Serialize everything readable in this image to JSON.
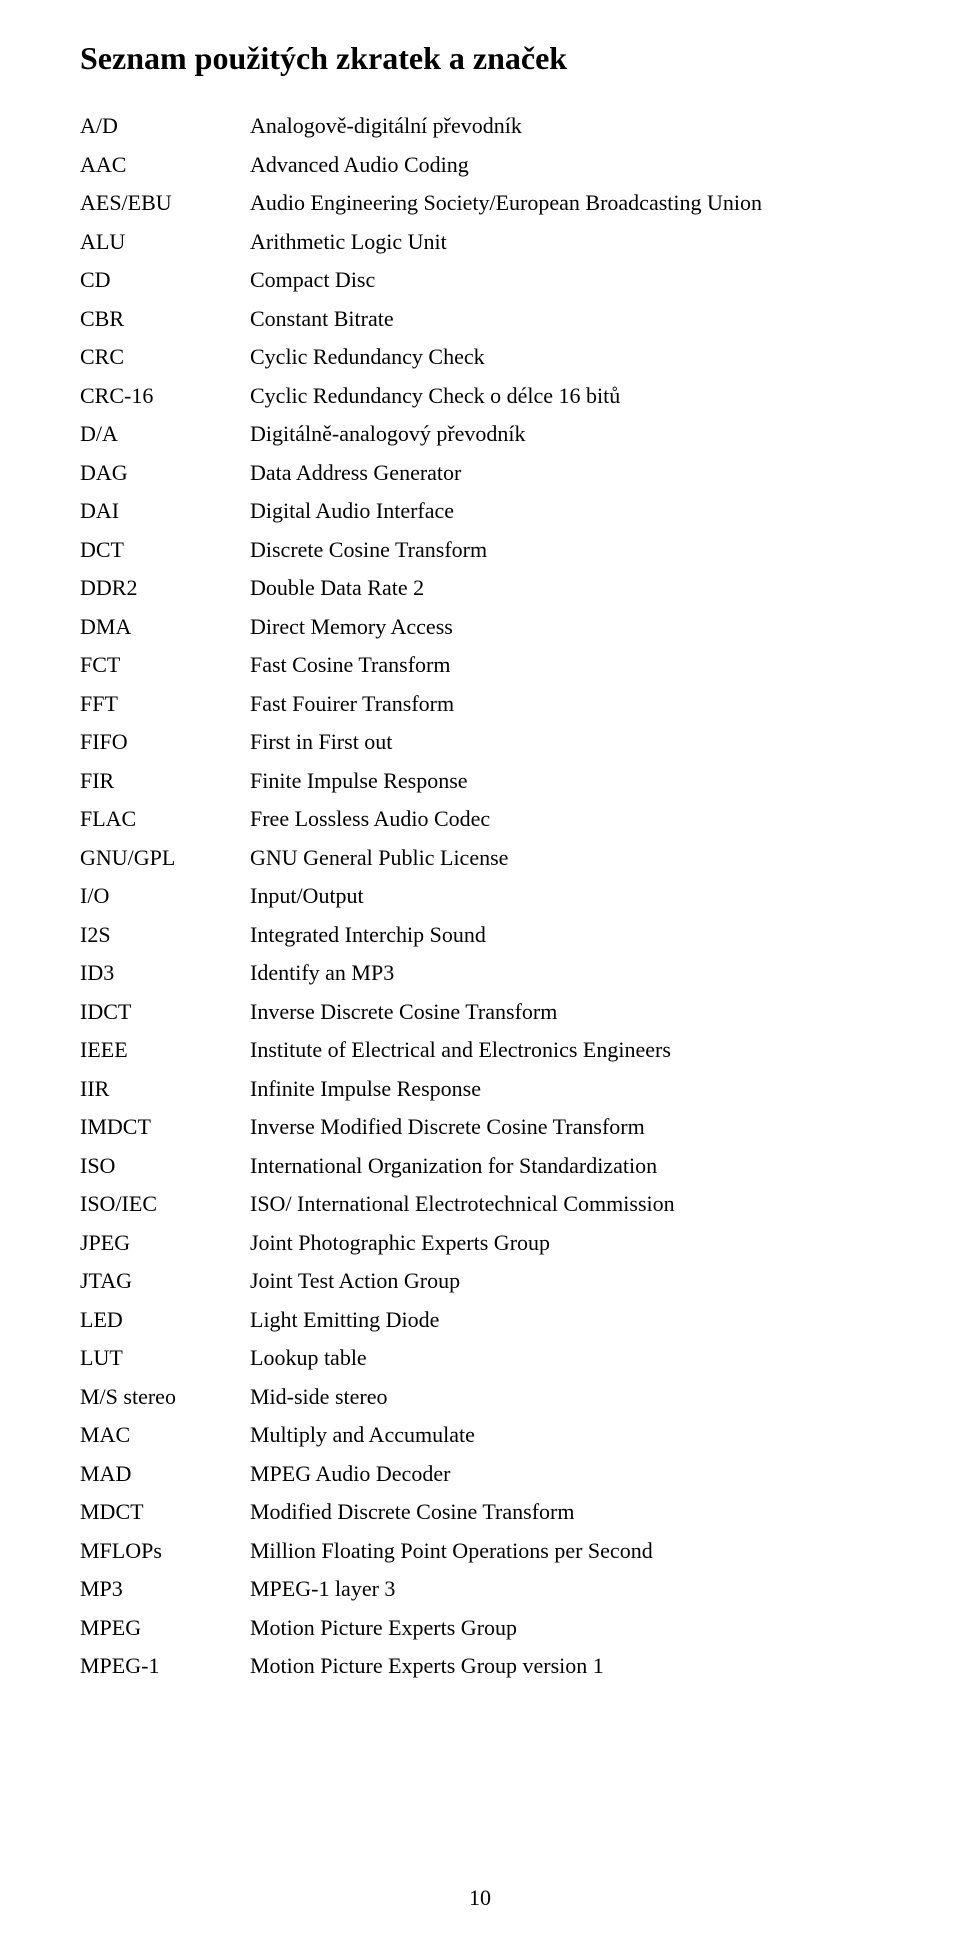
{
  "heading": "Seznam použitých zkratek a značek",
  "entries": [
    {
      "abbr": "A/D",
      "def": "Analogově-digitální převodník"
    },
    {
      "abbr": "AAC",
      "def": "Advanced Audio Coding"
    },
    {
      "abbr": "AES/EBU",
      "def": "Audio Engineering Society/European Broadcasting Union"
    },
    {
      "abbr": "ALU",
      "def": "Arithmetic Logic Unit"
    },
    {
      "abbr": "CD",
      "def": "Compact Disc"
    },
    {
      "abbr": "CBR",
      "def": "Constant Bitrate"
    },
    {
      "abbr": "CRC",
      "def": "Cyclic Redundancy Check"
    },
    {
      "abbr": "CRC-16",
      "def": "Cyclic Redundancy Check o délce 16 bitů"
    },
    {
      "abbr": "D/A",
      "def": "Digitálně-analogový převodník"
    },
    {
      "abbr": "DAG",
      "def": "Data Address Generator"
    },
    {
      "abbr": "DAI",
      "def": "Digital Audio Interface"
    },
    {
      "abbr": "DCT",
      "def": "Discrete Cosine Transform"
    },
    {
      "abbr": "DDR2",
      "def": "Double Data Rate 2"
    },
    {
      "abbr": "DMA",
      "def": "Direct Memory Access"
    },
    {
      "abbr": "FCT",
      "def": "Fast Cosine Transform"
    },
    {
      "abbr": "FFT",
      "def": "Fast Fouirer Transform"
    },
    {
      "abbr": "FIFO",
      "def": "First in First out"
    },
    {
      "abbr": "FIR",
      "def": "Finite Impulse Response"
    },
    {
      "abbr": "FLAC",
      "def": "Free Lossless Audio Codec"
    },
    {
      "abbr": "GNU/GPL",
      "def": "GNU General Public License"
    },
    {
      "abbr": "I/O",
      "def": "Input/Output"
    },
    {
      "abbr": "I2S",
      "def": "Integrated Interchip Sound"
    },
    {
      "abbr": "ID3",
      "def": "Identify an MP3"
    },
    {
      "abbr": "IDCT",
      "def": "Inverse Discrete Cosine Transform"
    },
    {
      "abbr": "IEEE",
      "def": "Institute of Electrical and Electronics Engineers"
    },
    {
      "abbr": "IIR",
      "def": "Infinite Impulse Response"
    },
    {
      "abbr": "IMDCT",
      "def": "Inverse Modified Discrete Cosine Transform"
    },
    {
      "abbr": "ISO",
      "def": "International Organization for Standardization"
    },
    {
      "abbr": "ISO/IEC",
      "def": "ISO/ International Electrotechnical Commission"
    },
    {
      "abbr": "JPEG",
      "def": "Joint Photographic Experts Group"
    },
    {
      "abbr": "JTAG",
      "def": "Joint Test Action Group"
    },
    {
      "abbr": "LED",
      "def": "Light Emitting Diode"
    },
    {
      "abbr": "LUT",
      "def": "Lookup table"
    },
    {
      "abbr": "M/S stereo",
      "def": "Mid-side stereo"
    },
    {
      "abbr": "MAC",
      "def": "Multiply and Accumulate"
    },
    {
      "abbr": "MAD",
      "def": "MPEG Audio Decoder"
    },
    {
      "abbr": "MDCT",
      "def": "Modified Discrete Cosine Transform"
    },
    {
      "abbr": "MFLOPs",
      "def": "Million Floating Point Operations per Second"
    },
    {
      "abbr": "MP3",
      "def": "MPEG-1 layer 3"
    },
    {
      "abbr": "MPEG",
      "def": "Motion Picture Experts Group"
    },
    {
      "abbr": "MPEG-1",
      "def": "Motion Picture Experts Group version 1"
    }
  ],
  "page_number": "10"
}
